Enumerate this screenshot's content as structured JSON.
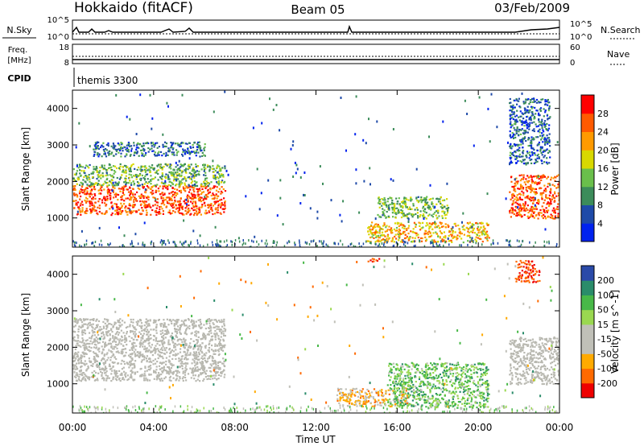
{
  "header": {
    "site": "Hokkaido (fitACF)",
    "beam": "Beam 05",
    "date": "03/Feb/2009"
  },
  "summary_panels": {
    "nsky_label": "N.Sky",
    "nsky_ticks": [
      "10^5",
      "10^0"
    ],
    "nsearch_label": "N.Search",
    "freq_label_line1": "Freq.",
    "freq_label_line2": "[MHz]",
    "freq_ticks": [
      "18",
      "8"
    ],
    "nave_label": "Nave",
    "nave_ticks": [
      "60",
      "0"
    ],
    "cpid_label": "CPID",
    "cpid_value": "themis 3300"
  },
  "colors": {
    "power_scale": [
      "#0022ee",
      "#1e4aa8",
      "#3c8c5a",
      "#6abf4b",
      "#d8d800",
      "#ff9a00",
      "#ff5a00",
      "#ff0000"
    ],
    "velocity_scale": [
      "#ee0000",
      "#ff6a00",
      "#ffaa00",
      "#c0c0b8",
      "#c0c0b8",
      "#9ad850",
      "#48b848",
      "#2a8c6a",
      "#2a4aa8"
    ],
    "ground_scatter": "#b8b8b0"
  },
  "chart_data": [
    {
      "type": "heatmap",
      "panel": "power",
      "ylabel": "Slant Range [km]",
      "y_ticks": [
        "1000",
        "2000",
        "3000",
        "4000"
      ],
      "ylim": [
        200,
        4500
      ],
      "xlim": [
        "00:00",
        "24:00"
      ],
      "colorbar_label": "Power [dB]",
      "colorbar_ticks": [
        "4",
        "8",
        "12",
        "16",
        "20",
        "24",
        "28"
      ],
      "colorbar_range": [
        0,
        32
      ],
      "scatter_regions": [
        {
          "t_start": 0.0,
          "t_end": 7.5,
          "range_low": 1100,
          "range_high": 1900,
          "power_db": 28
        },
        {
          "t_start": 0.0,
          "t_end": 7.5,
          "range_low": 1900,
          "range_high": 2500,
          "power_db": 14
        },
        {
          "t_start": 1.0,
          "t_end": 6.5,
          "range_low": 2700,
          "range_high": 3100,
          "power_db": 9
        },
        {
          "t_start": 14.5,
          "t_end": 20.5,
          "range_low": 350,
          "range_high": 900,
          "power_db": 22
        },
        {
          "t_start": 15.0,
          "t_end": 18.5,
          "range_low": 1000,
          "range_high": 1600,
          "power_db": 15
        },
        {
          "t_start": 21.5,
          "t_end": 24.0,
          "range_low": 1000,
          "range_high": 2200,
          "power_db": 27
        },
        {
          "t_start": 21.5,
          "t_end": 23.5,
          "range_low": 2500,
          "range_high": 4300,
          "power_db": 8
        }
      ]
    },
    {
      "type": "heatmap",
      "panel": "velocity",
      "ylabel": "Slant Range [km]",
      "y_ticks": [
        "1000",
        "2000",
        "3000",
        "4000"
      ],
      "ylim": [
        200,
        4500
      ],
      "xlabel": "Time UT",
      "x_ticks": [
        "00:00",
        "04:00",
        "08:00",
        "12:00",
        "16:00",
        "20:00",
        "00:00"
      ],
      "xlim": [
        "00:00",
        "24:00"
      ],
      "colorbar_label": "Velocity [m s^-1]",
      "colorbar_ticks": [
        "-200",
        "-100",
        "-50",
        "-15",
        "15",
        "50",
        "100",
        "200"
      ],
      "colorbar_range": [
        -250,
        250
      ],
      "scatter_regions": [
        {
          "t_start": 0.0,
          "t_end": 7.5,
          "range_low": 1100,
          "range_high": 2800,
          "velocity": 0,
          "ground_scatter": true
        },
        {
          "t_start": 21.5,
          "t_end": 24.0,
          "range_low": 1000,
          "range_high": 2300,
          "velocity": 0,
          "ground_scatter": true
        },
        {
          "t_start": 13.0,
          "t_end": 16.5,
          "range_low": 400,
          "range_high": 900,
          "velocity": -60
        },
        {
          "t_start": 15.5,
          "t_end": 20.5,
          "range_low": 350,
          "range_high": 1600,
          "velocity": 60
        },
        {
          "t_start": 14.5,
          "t_end": 15.2,
          "range_low": 4350,
          "range_high": 4450,
          "velocity": -220
        },
        {
          "t_start": 21.8,
          "t_end": 23.0,
          "range_low": 3800,
          "range_high": 4400,
          "velocity": -200
        }
      ]
    }
  ]
}
